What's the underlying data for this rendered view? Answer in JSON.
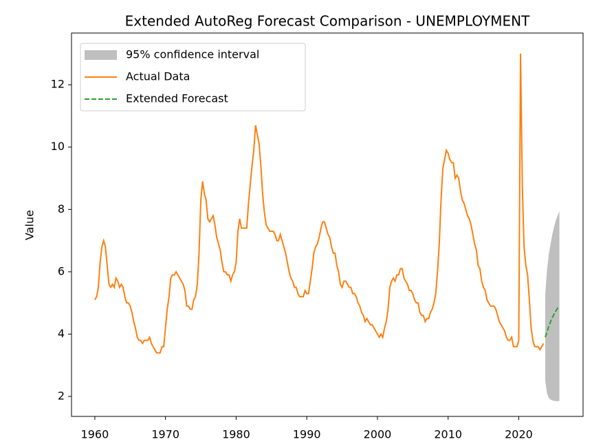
{
  "chart_data": {
    "type": "line",
    "title": "Extended AutoReg Forecast Comparison - UNEMPLOYMENT",
    "y_label": "Value",
    "xlim": [
      1956.7,
      2029.1
    ],
    "ylim": [
      1.36,
      13.66
    ],
    "xticks": [
      1960,
      1970,
      1980,
      1990,
      2000,
      2010,
      2020
    ],
    "yticks": [
      2,
      4,
      6,
      8,
      10,
      12
    ],
    "legend": "upper left",
    "bands": [
      {
        "name": "95% confidence interval",
        "color": "#808080",
        "x": [
          2023.75,
          2024,
          2024.25,
          2024.5,
          2024.75,
          2025,
          2025.25,
          2025.5,
          2025.75
        ],
        "lower": [
          2.5,
          2.1,
          1.95,
          1.9,
          1.87,
          1.86,
          1.85,
          1.85,
          1.85
        ],
        "upper": [
          5.3,
          6.05,
          6.55,
          6.9,
          7.2,
          7.45,
          7.65,
          7.8,
          7.95
        ]
      }
    ],
    "series": [
      {
        "name": "Actual Data",
        "color": "#ff7f0e",
        "dash": false,
        "x": [
          1960,
          1960.25,
          1960.5,
          1960.75,
          1961,
          1961.25,
          1961.5,
          1961.75,
          1962,
          1962.25,
          1962.5,
          1962.75,
          1963,
          1963.25,
          1963.5,
          1963.75,
          1964,
          1964.25,
          1964.5,
          1964.75,
          1965,
          1965.25,
          1965.5,
          1965.75,
          1966,
          1966.25,
          1966.5,
          1966.75,
          1967,
          1967.25,
          1967.5,
          1967.75,
          1968,
          1968.25,
          1968.5,
          1968.75,
          1969,
          1969.25,
          1969.5,
          1969.75,
          1970,
          1970.25,
          1970.5,
          1970.75,
          1971,
          1971.25,
          1971.5,
          1971.75,
          1972,
          1972.25,
          1972.5,
          1972.75,
          1973,
          1973.25,
          1973.5,
          1973.75,
          1974,
          1974.25,
          1974.5,
          1974.75,
          1975,
          1975.25,
          1975.5,
          1975.75,
          1976,
          1976.25,
          1976.5,
          1976.75,
          1977,
          1977.25,
          1977.5,
          1977.75,
          1978,
          1978.25,
          1978.5,
          1978.75,
          1979,
          1979.25,
          1979.5,
          1979.75,
          1980,
          1980.25,
          1980.5,
          1980.75,
          1981,
          1981.25,
          1981.5,
          1981.75,
          1982,
          1982.25,
          1982.5,
          1982.75,
          1983,
          1983.25,
          1983.5,
          1983.75,
          1984,
          1984.25,
          1984.5,
          1984.75,
          1985,
          1985.25,
          1985.5,
          1985.75,
          1986,
          1986.25,
          1986.5,
          1986.75,
          1987,
          1987.25,
          1987.5,
          1987.75,
          1988,
          1988.25,
          1988.5,
          1988.75,
          1989,
          1989.25,
          1989.5,
          1989.75,
          1990,
          1990.25,
          1990.5,
          1990.75,
          1991,
          1991.25,
          1991.5,
          1991.75,
          1992,
          1992.25,
          1992.5,
          1992.75,
          1993,
          1993.25,
          1993.5,
          1993.75,
          1994,
          1994.25,
          1994.5,
          1994.75,
          1995,
          1995.25,
          1995.5,
          1995.75,
          1996,
          1996.25,
          1996.5,
          1996.75,
          1997,
          1997.25,
          1997.5,
          1997.75,
          1998,
          1998.25,
          1998.5,
          1998.75,
          1999,
          1999.25,
          1999.5,
          1999.75,
          2000,
          2000.25,
          2000.5,
          2000.75,
          2001,
          2001.25,
          2001.5,
          2001.75,
          2002,
          2002.25,
          2002.5,
          2002.75,
          2003,
          2003.25,
          2003.5,
          2003.75,
          2004,
          2004.25,
          2004.5,
          2004.75,
          2005,
          2005.25,
          2005.5,
          2005.75,
          2006,
          2006.25,
          2006.5,
          2006.75,
          2007,
          2007.25,
          2007.5,
          2007.75,
          2008,
          2008.25,
          2008.5,
          2008.75,
          2009,
          2009.25,
          2009.5,
          2009.75,
          2010,
          2010.25,
          2010.5,
          2010.75,
          2011,
          2011.25,
          2011.5,
          2011.75,
          2012,
          2012.25,
          2012.5,
          2012.75,
          2013,
          2013.25,
          2013.5,
          2013.75,
          2014,
          2014.25,
          2014.5,
          2014.75,
          2015,
          2015.25,
          2015.5,
          2015.75,
          2016,
          2016.25,
          2016.5,
          2016.75,
          2017,
          2017.25,
          2017.5,
          2017.75,
          2018,
          2018.25,
          2018.5,
          2018.75,
          2019,
          2019.25,
          2019.5,
          2019.75,
          2020,
          2020.25,
          2020.5,
          2020.75,
          2021,
          2021.25,
          2021.5,
          2021.75,
          2022,
          2022.25,
          2022.5,
          2022.75,
          2023,
          2023.25,
          2023.5
        ],
        "values": [
          5.1,
          5.2,
          5.5,
          6.3,
          6.8,
          7.0,
          6.8,
          6.2,
          5.6,
          5.5,
          5.6,
          5.5,
          5.8,
          5.7,
          5.5,
          5.6,
          5.5,
          5.2,
          5.0,
          5.0,
          4.9,
          4.7,
          4.4,
          4.2,
          3.9,
          3.8,
          3.8,
          3.7,
          3.8,
          3.8,
          3.8,
          3.9,
          3.7,
          3.6,
          3.5,
          3.4,
          3.4,
          3.4,
          3.6,
          3.6,
          4.2,
          4.8,
          5.2,
          5.8,
          5.9,
          5.9,
          6.0,
          5.9,
          5.8,
          5.7,
          5.6,
          5.4,
          4.9,
          4.9,
          4.8,
          4.8,
          5.1,
          5.2,
          5.6,
          6.6,
          8.3,
          8.9,
          8.5,
          8.3,
          7.7,
          7.6,
          7.7,
          7.8,
          7.5,
          7.1,
          6.9,
          6.7,
          6.3,
          6.0,
          6.0,
          5.9,
          5.9,
          5.7,
          5.9,
          6.0,
          6.3,
          7.3,
          7.7,
          7.4,
          7.4,
          7.4,
          7.4,
          8.2,
          8.8,
          9.4,
          9.9,
          10.7,
          10.4,
          10.1,
          9.4,
          8.5,
          7.9,
          7.5,
          7.4,
          7.3,
          7.3,
          7.3,
          7.2,
          7.0,
          7.0,
          7.2,
          7.0,
          6.8,
          6.6,
          6.3,
          6.0,
          5.8,
          5.7,
          5.5,
          5.5,
          5.3,
          5.2,
          5.2,
          5.2,
          5.4,
          5.3,
          5.3,
          5.7,
          6.1,
          6.6,
          6.8,
          6.9,
          7.1,
          7.4,
          7.6,
          7.6,
          7.4,
          7.2,
          7.1,
          6.8,
          6.6,
          6.6,
          6.2,
          6.0,
          5.6,
          5.5,
          5.7,
          5.7,
          5.6,
          5.5,
          5.5,
          5.3,
          5.3,
          5.2,
          5.0,
          4.9,
          4.7,
          4.6,
          4.4,
          4.5,
          4.4,
          4.3,
          4.3,
          4.2,
          4.1,
          4.0,
          3.9,
          4.0,
          3.9,
          4.2,
          4.4,
          4.8,
          5.5,
          5.7,
          5.8,
          5.7,
          5.9,
          5.9,
          6.1,
          6.1,
          5.8,
          5.7,
          5.6,
          5.4,
          5.4,
          5.3,
          5.1,
          5.0,
          5.0,
          4.7,
          4.6,
          4.6,
          4.4,
          4.5,
          4.5,
          4.7,
          4.8,
          5.0,
          5.3,
          6.0,
          6.9,
          8.3,
          9.3,
          9.6,
          9.9,
          9.8,
          9.6,
          9.5,
          9.5,
          9.0,
          9.1,
          9.0,
          8.6,
          8.3,
          8.2,
          8.0,
          7.8,
          7.7,
          7.5,
          7.2,
          6.9,
          6.7,
          6.2,
          6.1,
          5.7,
          5.5,
          5.4,
          5.1,
          5.0,
          4.9,
          4.9,
          4.9,
          4.8,
          4.6,
          4.4,
          4.3,
          4.2,
          4.1,
          3.9,
          3.8,
          3.8,
          3.9,
          3.6,
          3.6,
          3.6,
          3.8,
          13.0,
          8.8,
          6.8,
          6.2,
          5.9,
          5.1,
          4.2,
          3.8,
          3.6,
          3.6,
          3.6,
          3.5,
          3.6,
          3.7
        ]
      },
      {
        "name": "Extended Forecast",
        "color": "#2ca02c",
        "dash": true,
        "x": [
          2023.75,
          2024,
          2024.25,
          2024.5,
          2024.75,
          2025,
          2025.25,
          2025.5,
          2025.75
        ],
        "values": [
          3.9,
          4.08,
          4.25,
          4.4,
          4.53,
          4.64,
          4.74,
          4.83,
          4.9
        ]
      }
    ]
  }
}
